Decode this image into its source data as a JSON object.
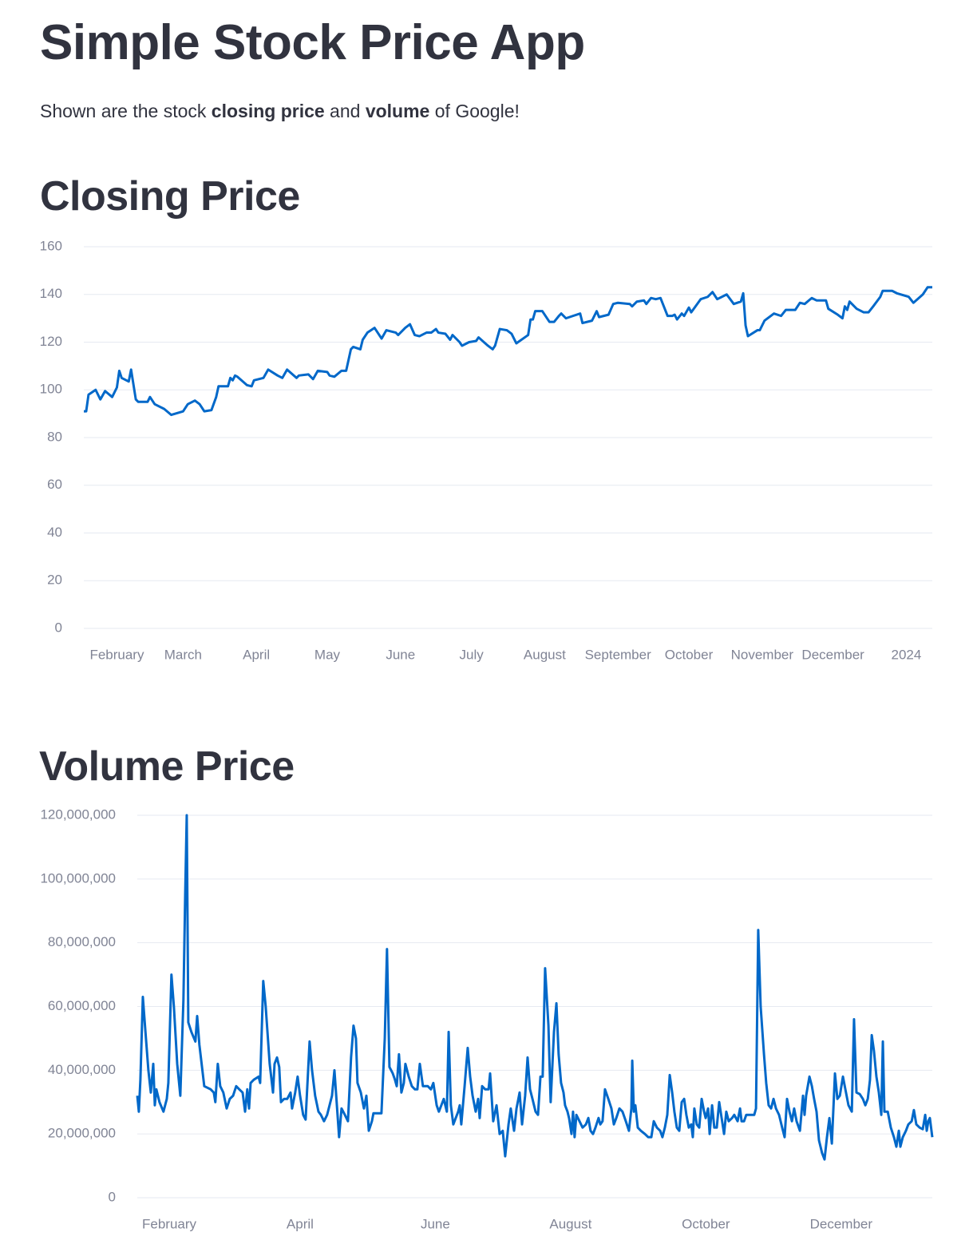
{
  "header": {
    "title": "Simple Stock Price App",
    "intro": [
      "Shown are the stock ",
      "closing price",
      " and ",
      "volume",
      " of Google!"
    ]
  },
  "chart_data": [
    {
      "type": "line",
      "title": "Closing Price",
      "x": [
        17,
        18,
        19,
        22,
        24,
        26,
        29,
        31,
        32,
        33,
        36,
        37,
        39,
        40,
        44,
        45,
        47,
        51,
        54,
        59,
        61,
        64,
        66,
        68,
        71,
        73,
        74,
        78,
        79,
        80,
        81,
        82,
        86,
        88,
        89,
        93,
        95,
        99,
        101,
        103,
        107,
        108,
        112,
        114,
        116,
        120,
        121,
        123,
        126,
        128,
        130,
        131,
        134,
        135,
        137,
        140,
        143,
        145,
        149,
        150,
        153,
        155,
        157,
        159,
        162,
        164,
        166,
        167,
        170,
        172,
        173,
        176,
        177,
        180,
        183,
        184,
        188,
        190,
        191,
        193,
        196,
        198,
        200,
        205,
        206,
        207,
        208,
        211,
        214,
        216,
        218,
        219,
        221,
        224,
        227,
        228,
        232,
        234,
        235,
        239,
        241,
        243,
        248,
        249,
        251,
        254,
        255,
        257,
        259,
        261,
        264,
        266,
        267,
        268,
        270,
        271,
        273,
        274,
        278,
        281,
        283,
        285,
        289,
        292,
        295,
        296,
        297,
        298,
        302,
        303,
        305,
        309,
        312,
        314,
        318,
        320,
        322,
        325,
        327,
        331,
        332,
        336,
        338,
        339,
        340,
        341,
        344,
        347,
        349,
        351,
        354,
        355,
        359,
        361,
        366,
        368,
        372,
        374,
        376
      ],
      "series": [
        {
          "color": "#0068c9",
          "values": [
            91,
            91,
            98,
            100,
            96,
            99.5,
            97,
            101,
            108,
            105,
            103.5,
            108.5,
            96,
            95,
            95,
            97,
            94,
            92,
            89.5,
            91,
            94,
            95.5,
            94,
            91,
            91.5,
            97,
            101.5,
            101.5,
            105,
            104,
            106,
            105.5,
            102,
            101.5,
            104,
            105,
            108.5,
            106,
            105,
            108.5,
            105,
            106,
            106.5,
            104.5,
            108,
            107.5,
            106,
            105.5,
            108,
            108,
            117,
            118,
            117,
            121,
            124,
            126,
            121.5,
            125,
            124,
            123,
            126,
            127.5,
            123,
            122.5,
            124,
            124,
            125.5,
            124,
            123.5,
            121,
            123,
            120,
            118.5,
            120,
            120.5,
            122,
            118.5,
            117,
            118.5,
            125.5,
            125,
            123.5,
            119.5,
            123,
            129.5,
            129.5,
            133,
            133,
            128.5,
            128.5,
            131,
            132,
            130,
            131,
            132,
            128,
            129,
            133,
            130.5,
            131.5,
            136,
            136.5,
            136,
            135,
            137,
            137.5,
            136,
            138.5,
            138,
            138.5,
            131,
            131,
            131.5,
            129.5,
            132,
            131,
            134.5,
            132.5,
            138,
            139,
            141,
            138,
            140,
            136,
            137,
            140.5,
            127,
            122.5,
            125,
            125,
            129,
            132,
            131,
            133.5,
            133.5,
            136.5,
            136,
            138.5,
            137.5,
            137.5,
            134,
            131.5,
            130,
            135,
            133.5,
            137,
            134,
            132.5,
            132.5,
            135,
            139,
            141.5,
            141.5,
            140.5,
            139,
            136.5,
            140,
            143,
            143
          ]
        }
      ],
      "xlim": [
        17,
        376
      ],
      "xticks": [
        {
          "value": 31,
          "label": "February"
        },
        {
          "value": 59,
          "label": "March"
        },
        {
          "value": 90,
          "label": "April"
        },
        {
          "value": 120,
          "label": "May"
        },
        {
          "value": 151,
          "label": "June"
        },
        {
          "value": 181,
          "label": "July"
        },
        {
          "value": 212,
          "label": "August"
        },
        {
          "value": 243,
          "label": "September"
        },
        {
          "value": 273,
          "label": "October"
        },
        {
          "value": 304,
          "label": "November"
        },
        {
          "value": 334,
          "label": "December"
        },
        {
          "value": 365,
          "label": "2024"
        }
      ],
      "ylim": [
        0,
        160
      ],
      "yticks": [
        0,
        20,
        40,
        60,
        80,
        100,
        120,
        140,
        160
      ],
      "grid": true
    },
    {
      "type": "line",
      "title": "Volume Price",
      "x": [
        16.6,
        17.3,
        18.0,
        19.1,
        20.5,
        21.6,
        22.7,
        23.8,
        24.5,
        25.2,
        26.6,
        28.4,
        29.9,
        30.6,
        32.0,
        33.1,
        34.6,
        36.0,
        37.4,
        38.2,
        38.9,
        39.6,
        41.0,
        42.8,
        43.6,
        44.6,
        46.8,
        49.7,
        51.1,
        51.8,
        52.9,
        54.0,
        55.4,
        56.9,
        58.3,
        59.8,
        61.2,
        62.6,
        64.1,
        65.2,
        66.2,
        67.0,
        67.7,
        69.1,
        71.3,
        72.0,
        73.4,
        74.5,
        76.3,
        77.8,
        78.5,
        79.6,
        80.6,
        81.4,
        82.8,
        84.2,
        85.7,
        86.4,
        87.8,
        88.9,
        90.0,
        91.4,
        92.5,
        94.3,
        95.4,
        96.8,
        98.3,
        99.4,
        100.8,
        102.2,
        104.4,
        105.5,
        106.6,
        107.6,
        108.7,
        110.2,
        111.6,
        113.0,
        114.1,
        115.2,
        115.9,
        117.4,
        118.8,
        119.9,
        121.0,
        122.4,
        123.1,
        126.7,
        128.2,
        129.2,
        130.3,
        131.8,
        132.8,
        133.6,
        134.6,
        135.7,
        136.8,
        137.5,
        139.0,
        140.4,
        141.8,
        142.9,
        144.0,
        145.4,
        147.6,
        149.0,
        150.1,
        151.6,
        152.6,
        153.7,
        154.8,
        156.2,
        157.0,
        158.0,
        159.1,
        160.2,
        161.3,
        162.0,
        162.7,
        164.2,
        165.6,
        166.7,
        167.8,
        169.2,
        170.3,
        171.0,
        172.1,
        173.5,
        175.0,
        175.7,
        177.1,
        178.6,
        180.0,
        181.4,
        182.5,
        184.0,
        185.0,
        186.5,
        187.6,
        189.0,
        190.1,
        191.5,
        192.6,
        193.7,
        194.8,
        196.2,
        197.3,
        198.4,
        199.4,
        200.5,
        202.0,
        203.0,
        204.5,
        205.6,
        206.6,
        207.7,
        208.8,
        209.5,
        210.6,
        211.3,
        212.4,
        213.1,
        213.8,
        214.6,
        216.0,
        217.4,
        218.9,
        220.0,
        221.0,
        222.1,
        223.2,
        224.6,
        225.4,
        226.4,
        227.5,
        229.0,
        230.4,
        231.5,
        232.6,
        234.0,
        235.4,
        236.9,
        238.3,
        239.4,
        239.8,
        240.5,
        241.2,
        242.3,
        243.7,
        245.5,
        247.0,
        248.4,
        249.5,
        250.9,
        252.4,
        253.4,
        254.5,
        255.6,
        256.7,
        257.8,
        258.8,
        259.9,
        261.0,
        262.1,
        263.2,
        264.2,
        265.3,
        266.4,
        267.1,
        267.8,
        268.9,
        270.0,
        271.1,
        272.2,
        272.9,
        274.0,
        274.7,
        275.8,
        276.8,
        277.9,
        279.0,
        280.1,
        281.2,
        282.2,
        283.3,
        284.8,
        285.8,
        287.3,
        288.4,
        289.1,
        290.2,
        291.2,
        292.3,
        293.4,
        294.8,
        295.6,
        296.6,
        297.7,
        299.2,
        300.2,
        301.3,
        302.4,
        303.5,
        304.6,
        306.0,
        307.4,
        308.5,
        309.6,
        310.7,
        311.8,
        312.8,
        313.9,
        315.4,
        316.8,
        317.5,
        318.2,
        319.7,
        320.8,
        321.8,
        322.9,
        324.0,
        325.4,
        326.5,
        327.6,
        328.7,
        329.8,
        331.2,
        332.3,
        333.4,
        334.8,
        335.9,
        337.3,
        338.8,
        339.8,
        340.9,
        342.4,
        343.8,
        344.9,
        346.0,
        347.0,
        347.8,
        348.8,
        349.9,
        351.0,
        352.1,
        352.8,
        353.5,
        355.0,
        356.4,
        357.8,
        358.9,
        360.0,
        360.7,
        361.8,
        363.2,
        364.3,
        365.8,
        366.8,
        367.9,
        369.4,
        370.8,
        371.9,
        372.6,
        373.3,
        374.0,
        375.1
      ],
      "series": [
        {
          "color": "#0068c9",
          "values": [
            32000000.0,
            27000000.0,
            37000000.0,
            63000000.0,
            50000000.0,
            40000000.0,
            33000000.0,
            42000000.0,
            29000000.0,
            34000000.0,
            30000000.0,
            27000000.0,
            31000000.0,
            36000000.0,
            70000000.0,
            60000000.0,
            42000000.0,
            32000000.0,
            62000000.0,
            95000000.0,
            120000000.0,
            55000000.0,
            52000000.0,
            49000000.0,
            57000000.0,
            48000000.0,
            35000000.0,
            34000000.0,
            33000000.0,
            30000000.0,
            42000000.0,
            35000000.0,
            33000000.0,
            28000000.0,
            31000000.0,
            32000000.0,
            35000000.0,
            34000000.0,
            33000000.0,
            27000000.0,
            34000000.0,
            28000000.0,
            36000000.0,
            37000000.0,
            38000000.0,
            36000000.0,
            68000000.0,
            60000000.0,
            42000000.0,
            33000000.0,
            42000000.0,
            44000000.0,
            41000000.0,
            30000000.0,
            31000000.0,
            31000000.0,
            33000000.0,
            28000000.0,
            33000000.0,
            38000000.0,
            32000000.0,
            26000000.0,
            24500000.0,
            49000000.0,
            40000000.0,
            32000000.0,
            27000000.0,
            26000000.0,
            24000000.0,
            26000000.0,
            32000000.0,
            40000000.0,
            29000000.0,
            19000000.0,
            28000000.0,
            26000000.0,
            24000000.0,
            44000000.0,
            54000000.0,
            50000000.0,
            36000000.0,
            33000000.0,
            28000000.0,
            32000000.0,
            21000000.0,
            24000000.0,
            26500000.0,
            26500000.0,
            50000000.0,
            78000000.0,
            41000000.0,
            39000000.0,
            37000000.0,
            35000000.0,
            45000000.0,
            33000000.0,
            36000000.0,
            42000000.0,
            38000000.0,
            35000000.0,
            34000000.0,
            34000000.0,
            42000000.0,
            35000000.0,
            35000000.0,
            34000000.0,
            36000000.0,
            29000000.0,
            27000000.0,
            29000000.0,
            31000000.0,
            27000000.0,
            52000000.0,
            29000000.0,
            23000000.0,
            25000000.0,
            27000000.0,
            29000000.0,
            23000000.0,
            35000000.0,
            47000000.0,
            38000000.0,
            32000000.0,
            27000000.0,
            31000000.0,
            25000000.0,
            35000000.0,
            34000000.0,
            34000000.0,
            39000000.0,
            24000000.0,
            29000000.0,
            20000000.0,
            21000000.0,
            13000000.0,
            23000000.0,
            28000000.0,
            21000000.0,
            28000000.0,
            33000000.0,
            23000000.0,
            32000000.0,
            44000000.0,
            34000000.0,
            31000000.0,
            27000000.0,
            26000000.0,
            38000000.0,
            38000000.0,
            72000000.0,
            54000000.0,
            30000000.0,
            52000000.0,
            61000000.0,
            45000000.0,
            36000000.0,
            33000000.0,
            29000000.0,
            27000000.0,
            25000000.0,
            20000000.0,
            27000000.0,
            19000000.0,
            26000000.0,
            24000000.0,
            22000000.0,
            23000000.0,
            25000000.0,
            21000000.0,
            20000000.0,
            22000000.0,
            25000000.0,
            23000000.0,
            24000000.0,
            34000000.0,
            31000000.0,
            28000000.0,
            23000000.0,
            25000000.0,
            28000000.0,
            27000000.0,
            24000000.0,
            21000000.0,
            28000000.0,
            43000000.0,
            27000000.0,
            29000000.0,
            22000000.0,
            21000000.0,
            20000000.0,
            19000000.0,
            19000000.0,
            24000000.0,
            22000000.0,
            21000000.0,
            19000000.0,
            22000000.0,
            26000000.0,
            38500000.0,
            33000000.0,
            27000000.0,
            22000000.0,
            21000000.0,
            30000000.0,
            31000000.0,
            26000000.0,
            22000000.0,
            23000000.0,
            19000000.0,
            28000000.0,
            23000000.0,
            22000000.0,
            31000000.0,
            27000000.0,
            25000000.0,
            28000000.0,
            20000000.0,
            29000000.0,
            22000000.0,
            22000000.0,
            30000000.0,
            25000000.0,
            20000000.0,
            27000000.0,
            24000000.0,
            25000000.0,
            26000000.0,
            24000000.0,
            28000000.0,
            24000000.0,
            24000000.0,
            26000000.0,
            26000000.0,
            26000000.0,
            26000000.0,
            28000000.0,
            84000000.0,
            60000000.0,
            45000000.0,
            36000000.0,
            29000000.0,
            28000000.0,
            31000000.0,
            28000000.0,
            26000000.0,
            22000000.0,
            19000000.0,
            31000000.0,
            27000000.0,
            24000000.0,
            28000000.0,
            24000000.0,
            21000000.0,
            32000000.0,
            26000000.0,
            32000000.0,
            38000000.0,
            35000000.0,
            31000000.0,
            27000000.0,
            18000000.0,
            14000000.0,
            12000000.0,
            19000000.0,
            25000000.0,
            17000000.0,
            39000000.0,
            31000000.0,
            32000000.0,
            38000000.0,
            34000000.0,
            29000000.0,
            27000000.0,
            56000000.0,
            33000000.0,
            32500000.0,
            31000000.0,
            29000000.0,
            31000000.0,
            37000000.0,
            51000000.0,
            46000000.0,
            38000000.0,
            33000000.0,
            26000000.0,
            49000000.0,
            27000000.0,
            27000000.0,
            22000000.0,
            19000000.0,
            16000000.0,
            21000000.0,
            16000000.0,
            19000000.0,
            21000000.0,
            23000000.0,
            24000000.0,
            27500000.0,
            23000000.0,
            22000000.0,
            21500000.0,
            26000000.0,
            21000000.0,
            24000000.0,
            25000000.0,
            19000000.0
          ]
        }
      ],
      "xlim": [
        16.6,
        375.1
      ],
      "xticks": [
        {
          "value": 31,
          "label": "February"
        },
        {
          "value": 90,
          "label": "April"
        },
        {
          "value": 151,
          "label": "June"
        },
        {
          "value": 212,
          "label": "August"
        },
        {
          "value": 273,
          "label": "October"
        },
        {
          "value": 334,
          "label": "December"
        }
      ],
      "ylim": [
        0,
        120000000
      ],
      "yticks": [
        0,
        {
          "value": 20000000,
          "label": "20,000,000"
        },
        {
          "value": 40000000,
          "label": "40,000,000"
        },
        {
          "value": 60000000,
          "label": "60,000,000"
        },
        {
          "value": 80000000,
          "label": "80,000,000"
        },
        {
          "value": 100000000,
          "label": "100,000,000"
        },
        {
          "value": 120000000,
          "label": "120,000,000"
        }
      ],
      "grid": true
    }
  ]
}
